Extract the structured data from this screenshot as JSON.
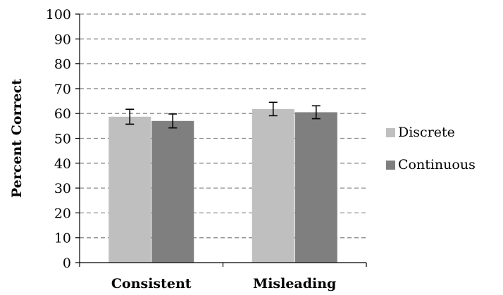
{
  "chart_data": {
    "type": "bar",
    "title": "",
    "xlabel": "",
    "ylabel": "Percent Correct",
    "ylim": [
      0,
      100
    ],
    "ytick_step": 10,
    "grid": true,
    "legend_position": "right",
    "categories": [
      "Consistent",
      "Misleading"
    ],
    "series": [
      {
        "name": "Discrete",
        "color": "#bfbfbf",
        "values": [
          58.7,
          61.8
        ],
        "errors": [
          3.0,
          2.7
        ]
      },
      {
        "name": "Continuous",
        "color": "#7f7f7f",
        "values": [
          57.0,
          60.5
        ],
        "errors": [
          2.8,
          2.6
        ]
      }
    ]
  }
}
